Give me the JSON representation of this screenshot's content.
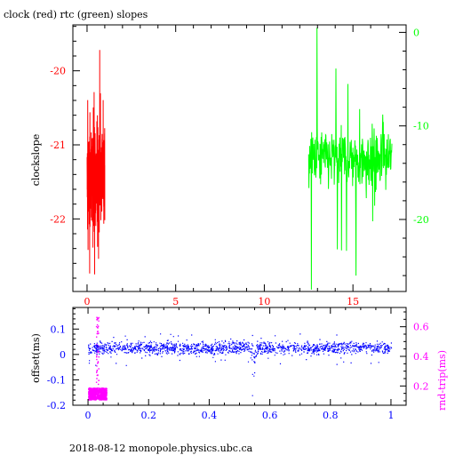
{
  "chart_data": [
    {
      "type": "line",
      "title": "clock (red) rtc (green) slopes",
      "xlabel": "",
      "ylabel": "clockslope",
      "xlim": [
        -0.8,
        18.0
      ],
      "xticks": [
        0,
        5,
        10,
        15
      ],
      "ylim": [
        -22.98,
        -19.38
      ],
      "yticks": [
        -20,
        -21,
        -22
      ],
      "ylim_right": [
        -27.7,
        0.8
      ],
      "yticks_right": [
        0,
        -10,
        -20
      ],
      "colors": {
        "clock": "#ff0000",
        "rtc": "#00ff00",
        "axis": "#000000"
      },
      "series": [
        {
          "name": "clock",
          "axis": "left",
          "x_range": [
            0.0,
            1.0
          ],
          "center": -21.45,
          "spread": 0.28,
          "min": -22.75,
          "max": -19.72
        },
        {
          "name": "rtc",
          "axis": "right",
          "x_range": [
            12.5,
            17.2
          ],
          "center": -13.5,
          "spread": 1.6,
          "min": -26.0,
          "max": 0.5
        }
      ]
    },
    {
      "type": "scatter",
      "title": "",
      "xlabel": "",
      "ylabel": "offset(ms)",
      "ylabel_right": "rnd-trip(ms)",
      "xlim": [
        -0.05,
        1.05
      ],
      "xticks": [
        0,
        0.2,
        0.4,
        0.6,
        0.8,
        1
      ],
      "ylim": [
        -0.2,
        0.185
      ],
      "yticks": [
        0.1,
        0,
        -0.1,
        -0.2
      ],
      "ylim_right": [
        0.07,
        0.73
      ],
      "yticks_right": [
        0.6,
        0.4,
        0.2
      ],
      "colors": {
        "offset": "#0000ff",
        "roundtrip": "#ff00ff",
        "axis": "#000000"
      },
      "series": [
        {
          "name": "offset",
          "axis": "left",
          "x_range": [
            0.0,
            1.0
          ],
          "center": 0.028,
          "spread": 0.012,
          "dip_at_x": 0.545,
          "dip_min": -0.19
        },
        {
          "name": "rnd-trip",
          "axis": "right",
          "x_range": [
            0.0,
            0.06
          ],
          "center": 0.15,
          "spread": 0.04,
          "spike_at_x": 0.03,
          "spike_max": 0.7
        }
      ]
    }
  ],
  "footer": "2018-08-12  monopole.physics.ubc.ca"
}
